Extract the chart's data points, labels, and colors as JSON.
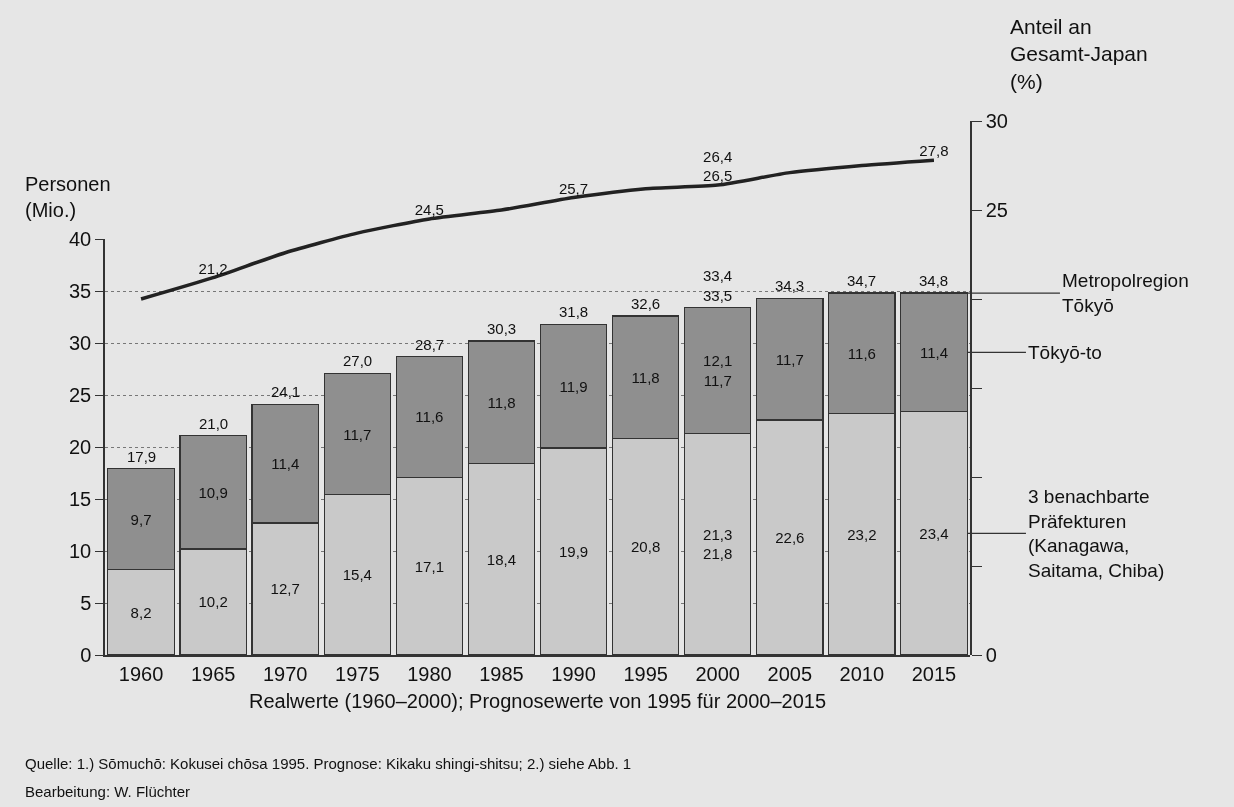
{
  "chart_data": {
    "type": "bar",
    "stacked": true,
    "categories": [
      "1960",
      "1965",
      "1970",
      "1975",
      "1980",
      "1985",
      "1990",
      "1995",
      "2000",
      "2005",
      "2010",
      "2015"
    ],
    "series": [
      {
        "name": "3 benachbarte\nPräfekturen\n(Kanagawa,\nSaitama, Chiba)",
        "color": "#c9c9c9",
        "values": [
          8.2,
          10.2,
          12.7,
          15.4,
          17.1,
          18.4,
          19.9,
          20.8,
          21.3,
          22.6,
          23.2,
          23.4
        ],
        "value_labels": [
          "8,2",
          "10,2",
          "12,7",
          "15,4",
          "17,1",
          "18,4",
          "19,9",
          "20,8",
          "21,3\n21,8",
          "22,6",
          "23,2",
          "23,4"
        ]
      },
      {
        "name": "Tōkyō-to",
        "color": "#8f8f8f",
        "values": [
          9.7,
          10.9,
          11.4,
          11.7,
          11.6,
          11.8,
          11.9,
          11.8,
          12.1,
          11.7,
          11.6,
          11.4
        ],
        "value_labels": [
          "9,7",
          "10,9",
          "11,4",
          "11,7",
          "11,6",
          "11,8",
          "11,9",
          "11,8",
          "12,1\n11,7",
          "11,7",
          "11,6",
          "11,4"
        ]
      },
      {
        "type": "line",
        "axis": "y2",
        "color": "#222222",
        "values": [
          20.0,
          21.2,
          22.6,
          23.7,
          24.5,
          25.0,
          25.7,
          26.2,
          26.4,
          27.1,
          27.5,
          27.8
        ],
        "value_labels": [
          null,
          "21,2",
          null,
          null,
          "24,5",
          null,
          "25,7",
          null,
          "26,4\n26,5",
          null,
          null,
          "27,8"
        ]
      }
    ],
    "totals": [
      "17,9",
      "21,0",
      "24,1",
      "27,0",
      "28,7",
      "30,3",
      "31,8",
      "32,6",
      "33,4\n33,5",
      "34,3",
      "34,7",
      "34,8"
    ],
    "ylabel": "Personen\n(Mio.)",
    "y2label": "Anteil an\nGesamt-Japan\n(%)",
    "xlabel": "Realwerte (1960–2000); Prognosewerte von 1995 für 2000–2015",
    "ylim": [
      0,
      40
    ],
    "yticks": [
      0,
      5,
      10,
      15,
      20,
      25,
      30,
      35,
      40
    ],
    "y2lim": [
      0,
      30
    ],
    "y2ticks": [
      0,
      {
        "value": 5,
        "label": null
      },
      {
        "value": 10,
        "label": null
      },
      {
        "value": 15,
        "label": null
      },
      {
        "value": 20,
        "label": null
      },
      25,
      30
    ],
    "grid": "y",
    "legend": "right",
    "annotations": [
      {
        "text": "Metropolregion\nTōkyō",
        "x": "2015",
        "y": 34.8
      },
      "Quelle: 1.) Sōmuchō: Kokusei chōsa 1995. Prognose: Kikaku shingi-shitsu; 2.) siehe Abb. 1",
      "Bearbeitung: W. Flüchter"
    ]
  }
}
